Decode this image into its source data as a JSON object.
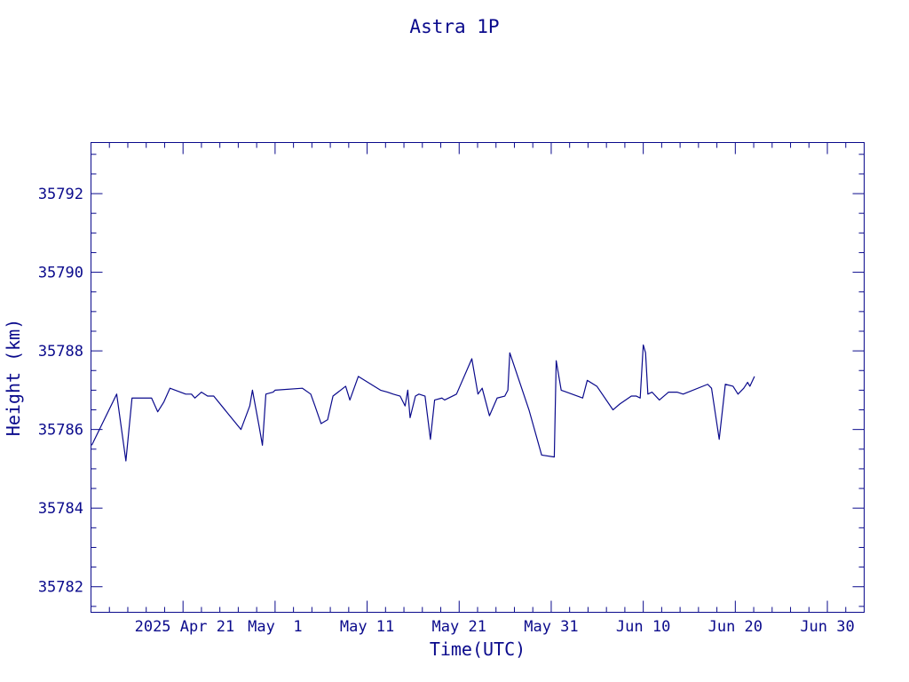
{
  "chart_data": {
    "type": "line",
    "title": "Astra 1P",
    "xlabel": "Time(UTC)",
    "ylabel": "Height (km)",
    "xlim": [
      "2025-04-11",
      "2025-07-04"
    ],
    "ylim": [
      35781.35,
      35793.3
    ],
    "y_ticks_major": [
      35782,
      35784,
      35786,
      35788,
      35790,
      35792
    ],
    "y_tick_labels": [
      "35782",
      "35784",
      "35786",
      "35788",
      "35790",
      "35792"
    ],
    "y_minor_step": 0.5,
    "x_ticks": [
      "2025-04-21",
      "2025-05-01",
      "2025-05-11",
      "2025-05-21",
      "2025-05-31",
      "2025-06-10",
      "2025-06-20",
      "2025-06-30"
    ],
    "x_tick_labels": [
      "2025 Apr 21",
      "May  1",
      "May 11",
      "May 21",
      "May 31",
      "Jun 10",
      "Jun 20",
      "Jun 30"
    ],
    "x_minor_step_days": 2,
    "grid": false,
    "series": [
      {
        "color": "#0a0a8c",
        "points": [
          [
            "2025-04-11T02:00",
            35785.6
          ],
          [
            "2025-04-13T19:00",
            35786.9
          ],
          [
            "2025-04-14T19:00",
            35785.2
          ],
          [
            "2025-04-15T11:00",
            35786.8
          ],
          [
            "2025-04-16T19:00",
            35786.8
          ],
          [
            "2025-04-16T23:00",
            35786.8
          ],
          [
            "2025-04-17T14:00",
            35786.8
          ],
          [
            "2025-04-18T06:00",
            35786.45
          ],
          [
            "2025-04-18T22:00",
            35786.7
          ],
          [
            "2025-04-19T14:00",
            35787.05
          ],
          [
            "2025-04-21T07:00",
            35786.9
          ],
          [
            "2025-04-21T22:00",
            35786.9
          ],
          [
            "2025-04-22T07:00",
            35786.8
          ],
          [
            "2025-04-23T00:00",
            35786.95
          ],
          [
            "2025-04-23T16:00",
            35786.85
          ],
          [
            "2025-04-24T08:00",
            35786.85
          ],
          [
            "2025-04-27T07:00",
            35786.0
          ],
          [
            "2025-04-28T06:00",
            35786.6
          ],
          [
            "2025-04-28T13:00",
            35787.0
          ],
          [
            "2025-04-29T06:00",
            35786.1
          ],
          [
            "2025-04-29T15:00",
            35785.6
          ],
          [
            "2025-04-30T00:00",
            35786.9
          ],
          [
            "2025-04-30T19:00",
            35786.95
          ],
          [
            "2025-05-01T00:00",
            35787.0
          ],
          [
            "2025-05-03T23:00",
            35787.05
          ],
          [
            "2025-05-04T21:00",
            35786.9
          ],
          [
            "2025-05-05T08:00",
            35786.6
          ],
          [
            "2025-05-06T00:00",
            35786.15
          ],
          [
            "2025-05-06T17:00",
            35786.25
          ],
          [
            "2025-05-07T07:00",
            35786.85
          ],
          [
            "2025-05-08T16:00",
            35787.1
          ],
          [
            "2025-05-09T03:00",
            35786.75
          ],
          [
            "2025-05-10T01:00",
            35787.35
          ],
          [
            "2025-05-12T11:00",
            35787.0
          ],
          [
            "2025-05-13T05:00",
            35786.95
          ],
          [
            "2025-05-13T20:00",
            35786.9
          ],
          [
            "2025-05-14T14:00",
            35786.85
          ],
          [
            "2025-05-15T03:00",
            35786.6
          ],
          [
            "2025-05-15T10:00",
            35787.0
          ],
          [
            "2025-05-15T16:00",
            35786.3
          ],
          [
            "2025-05-16T06:00",
            35786.85
          ],
          [
            "2025-05-16T15:00",
            35786.9
          ],
          [
            "2025-05-17T07:00",
            35786.85
          ],
          [
            "2025-05-17T21:00",
            35785.75
          ],
          [
            "2025-05-18T08:00",
            35786.75
          ],
          [
            "2025-05-19T03:00",
            35786.8
          ],
          [
            "2025-05-19T10:00",
            35786.75
          ],
          [
            "2025-05-20T17:00",
            35786.9
          ],
          [
            "2025-05-22T09:00",
            35787.8
          ],
          [
            "2025-05-23T01:00",
            35786.9
          ],
          [
            "2025-05-23T12:00",
            35787.05
          ],
          [
            "2025-05-24T07:00",
            35786.35
          ],
          [
            "2025-05-25T03:00",
            35786.8
          ],
          [
            "2025-05-25T23:00",
            35786.85
          ],
          [
            "2025-05-26T07:00",
            35787.0
          ],
          [
            "2025-05-26T12:00",
            35787.95
          ],
          [
            "2025-05-28T14:00",
            35786.5
          ],
          [
            "2025-05-29T23:00",
            35785.35
          ],
          [
            "2025-05-31T08:00",
            35785.3
          ],
          [
            "2025-05-31T13:00",
            35787.75
          ],
          [
            "2025-06-01T02:00",
            35787.0
          ],
          [
            "2025-06-03T10:00",
            35786.8
          ],
          [
            "2025-06-03T22:00",
            35787.25
          ],
          [
            "2025-06-04T23:00",
            35787.1
          ],
          [
            "2025-06-06T17:00",
            35786.5
          ],
          [
            "2025-06-07T11:00",
            35786.65
          ],
          [
            "2025-06-08T17:00",
            35786.85
          ],
          [
            "2025-06-09T06:00",
            35786.85
          ],
          [
            "2025-06-09T16:00",
            35786.8
          ],
          [
            "2025-06-10T00:00",
            35788.15
          ],
          [
            "2025-06-10T06:00",
            35787.95
          ],
          [
            "2025-06-10T12:00",
            35786.9
          ],
          [
            "2025-06-10T23:00",
            35786.95
          ],
          [
            "2025-06-11T18:00",
            35786.75
          ],
          [
            "2025-06-12T18:00",
            35786.95
          ],
          [
            "2025-06-13T16:00",
            35786.95
          ],
          [
            "2025-06-14T08:00",
            35786.9
          ],
          [
            "2025-06-17T00:00",
            35787.15
          ],
          [
            "2025-06-17T10:00",
            35787.05
          ],
          [
            "2025-06-18T06:00",
            35785.75
          ],
          [
            "2025-06-18T22:00",
            35787.15
          ],
          [
            "2025-06-19T18:00",
            35787.1
          ],
          [
            "2025-06-20T07:00",
            35786.9
          ],
          [
            "2025-06-20T22:00",
            35787.05
          ],
          [
            "2025-06-21T08:00",
            35787.2
          ],
          [
            "2025-06-21T14:00",
            35787.1
          ],
          [
            "2025-06-22T02:00",
            35787.35
          ]
        ]
      }
    ]
  }
}
